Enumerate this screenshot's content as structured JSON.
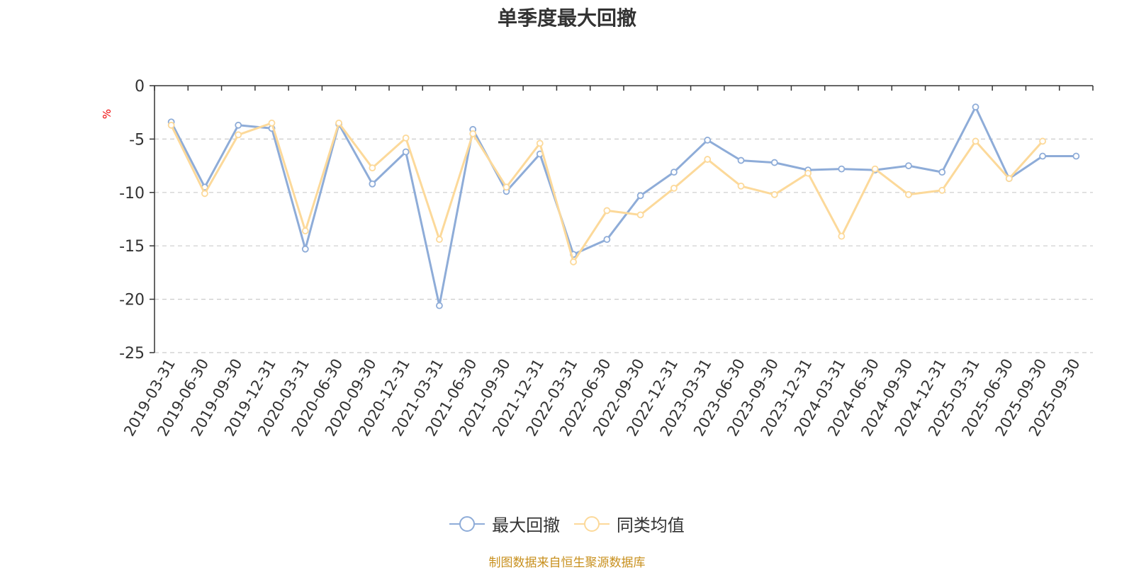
{
  "chart_data": {
    "type": "line",
    "title": "单季度最大回撤",
    "ylabel": "%",
    "ylim": [
      -25,
      0
    ],
    "yticks": [
      0,
      -5,
      -10,
      -15,
      -20,
      -25
    ],
    "grid": true,
    "legend_position": "bottom",
    "categories": [
      "2019-03-31",
      "2019-06-30",
      "2019-09-30",
      "2019-12-31",
      "2020-03-31",
      "2020-06-30",
      "2020-09-30",
      "2020-12-31",
      "2021-03-31",
      "2021-06-30",
      "2021-09-30",
      "2021-12-31",
      "2022-03-31",
      "2022-06-30",
      "2022-09-30",
      "2022-12-31",
      "2023-03-31",
      "2023-06-30",
      "2023-09-30",
      "2023-12-31",
      "2024-03-31",
      "2024-06-30",
      "2024-09-30",
      "2024-12-31",
      "2025-03-31",
      "2025-06-30",
      "2025-09-30",
      "2025-09-30"
    ],
    "series": [
      {
        "name": "最大回撤",
        "color": "#8eacd8",
        "values": [
          -3.4,
          -9.5,
          -3.7,
          -4.0,
          -15.3,
          -3.6,
          -9.2,
          -6.2,
          -20.6,
          -4.1,
          -9.9,
          -6.4,
          -15.8,
          -14.4,
          -10.3,
          -8.1,
          -5.1,
          -7.0,
          -7.2,
          -7.9,
          -7.8,
          -7.9,
          -7.5,
          -8.1,
          -2.0,
          -8.7,
          -6.6,
          -6.6
        ]
      },
      {
        "name": "同类均值",
        "color": "#fcd99a",
        "values": [
          -3.7,
          -10.1,
          -4.6,
          -3.5,
          -13.6,
          -3.5,
          -7.7,
          -4.9,
          -14.4,
          -4.5,
          -9.5,
          -5.4,
          -16.5,
          -11.7,
          -12.1,
          -9.6,
          -6.9,
          -9.4,
          -10.2,
          -8.2,
          -14.1,
          -7.8,
          -10.2,
          -9.8,
          -5.2,
          -8.7,
          -5.2,
          null
        ]
      }
    ]
  },
  "footer": {
    "note": "制图数据来自恒生聚源数据库"
  }
}
